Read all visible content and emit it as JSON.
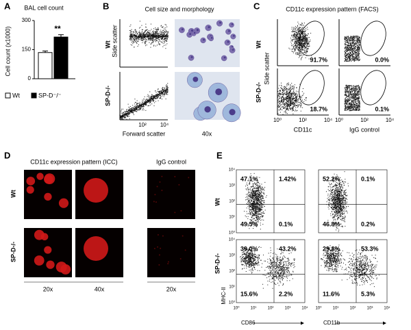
{
  "panel_a": {
    "label": "A",
    "chart_data": {
      "type": "bar",
      "title": "BAL cell count",
      "y_label": "Cell count (x1000)",
      "categories": [
        null
      ],
      "series": [
        {
          "name": "Wt",
          "color": "#ffffff",
          "values": [
            135
          ],
          "errors": [
            8
          ]
        },
        {
          "name": "SP-D⁻/⁻",
          "color": "#000000",
          "values": [
            215
          ],
          "errors": [
            12
          ]
        }
      ],
      "ylim": [
        0,
        300
      ],
      "yticks": [
        0,
        150,
        300
      ],
      "annotation": "**"
    }
  },
  "panel_b": {
    "label": "B",
    "title": "Cell size and morphology",
    "rows": [
      "Wt",
      "SP-D-/-"
    ],
    "y_label": "Side scatter",
    "x_label": "Forward scatter",
    "x_ticks": [
      "10²",
      "10⁴"
    ],
    "image_label": "40x"
  },
  "panel_c": {
    "label": "C",
    "title": "CD11c expression pattern (FACS)",
    "rows": [
      "Wt",
      "SP-D-/-"
    ],
    "y_label": "Side scatter",
    "x_ticks": [
      "10⁰",
      "10²",
      "10⁴"
    ],
    "columns": [
      "CD11c",
      "IgG control"
    ],
    "percents": [
      [
        "91.7%",
        "0.0%"
      ],
      [
        "18.7%",
        "0.1%"
      ]
    ]
  },
  "panel_d": {
    "label": "D",
    "title": "CD11c expression pattern (ICC)",
    "control_title": "IgG control",
    "rows": [
      "Wt",
      "SP-D-/-"
    ],
    "columns": [
      "20x",
      "40x",
      "20x"
    ]
  },
  "panel_e": {
    "label": "E",
    "rows": [
      "Wt",
      "SP-D-/-"
    ],
    "y_label": "MHC-II",
    "columns": [
      "CD86",
      "CD11b"
    ],
    "axis_ticks": [
      "10⁰",
      "10¹",
      "10²",
      "10³",
      "10⁴"
    ],
    "percents": [
      [
        [
          "47.1%",
          "1.42%",
          "49.5%",
          "0.1%"
        ],
        [
          "52.2%",
          "0.1%",
          "46.8%",
          "0.2%"
        ]
      ],
      [
        [
          "39.0%",
          "43.2%",
          "15.6%",
          "2.2%"
        ],
        [
          "29.8%",
          "53.3%",
          "11.6%",
          "5.3%"
        ]
      ]
    ]
  }
}
